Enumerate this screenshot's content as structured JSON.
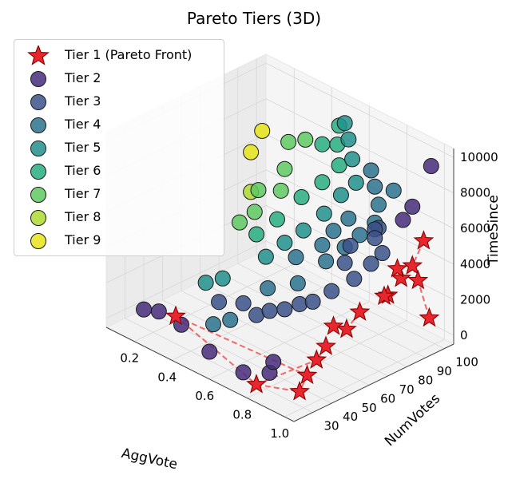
{
  "chart_data": {
    "type": "scatter",
    "title": "Pareto Tiers (3D)",
    "xlabel": "AggVote",
    "ylabel": "NumVotes",
    "zlabel": "TimeSince",
    "xlim": [
      0.05,
      1.05
    ],
    "ylim": [
      20,
      105
    ],
    "zlim": [
      -500,
      10500
    ],
    "xticks": [
      "0.2",
      "0.4",
      "0.6",
      "0.8",
      "1.0"
    ],
    "yticks": [
      "30",
      "40",
      "50",
      "60",
      "70",
      "80",
      "90",
      "100"
    ],
    "zticks": [
      "0",
      "2000",
      "4000",
      "6000",
      "8000",
      "10000"
    ],
    "legend_position": "top-left",
    "grid": true,
    "series": [
      {
        "name": "Tier 1 (Pareto Front)",
        "marker": "star",
        "color": "#e8262d",
        "points": [
          [
            0.22,
            40,
            0
          ],
          [
            0.8,
            25,
            0
          ],
          [
            0.98,
            30,
            300
          ],
          [
            0.96,
            36,
            800
          ],
          [
            0.94,
            43,
            1200
          ],
          [
            0.92,
            50,
            1500
          ],
          [
            0.93,
            60,
            2000
          ],
          [
            0.9,
            70,
            2300
          ],
          [
            0.95,
            80,
            3000
          ],
          [
            0.97,
            85,
            3800
          ],
          [
            0.98,
            90,
            4300
          ],
          [
            0.99,
            95,
            5500
          ],
          [
            0.97,
            100,
            800
          ],
          [
            0.93,
            98,
            2800
          ],
          [
            0.88,
            92,
            3500
          ],
          [
            0.85,
            88,
            2000
          ],
          [
            0.86,
            60,
            1800
          ]
        ],
        "connect": "dashed"
      },
      {
        "name": "Tier 2",
        "color": "#472d7b",
        "points": [
          [
            0.1,
            35,
            0
          ],
          [
            0.15,
            38,
            0
          ],
          [
            0.3,
            35,
            200
          ],
          [
            0.5,
            30,
            0
          ],
          [
            0.7,
            28,
            0
          ],
          [
            0.8,
            32,
            300
          ],
          [
            0.78,
            36,
            600
          ],
          [
            0.99,
            99,
            9500
          ],
          [
            0.92,
            96,
            7000
          ],
          [
            0.9,
            93,
            6300
          ]
        ]
      },
      {
        "name": "Tier 3",
        "color": "#3b528b",
        "points": [
          [
            0.4,
            45,
            1500
          ],
          [
            0.5,
            48,
            1800
          ],
          [
            0.55,
            50,
            1300
          ],
          [
            0.6,
            52,
            1700
          ],
          [
            0.65,
            55,
            1900
          ],
          [
            0.7,
            58,
            2300
          ],
          [
            0.75,
            60,
            2600
          ],
          [
            0.8,
            65,
            3200
          ],
          [
            0.85,
            72,
            3800
          ],
          [
            0.88,
            78,
            4500
          ],
          [
            0.9,
            82,
            5000
          ],
          [
            0.85,
            85,
            6000
          ],
          [
            0.8,
            88,
            5500
          ],
          [
            0.78,
            90,
            4800
          ],
          [
            0.7,
            85,
            4200
          ],
          [
            0.72,
            80,
            3600
          ]
        ]
      },
      {
        "name": "Tier 4",
        "color": "#2c728e",
        "points": [
          [
            0.4,
            42,
            400
          ],
          [
            0.45,
            46,
            700
          ],
          [
            0.55,
            56,
            2500
          ],
          [
            0.65,
            62,
            3000
          ],
          [
            0.72,
            70,
            4200
          ],
          [
            0.78,
            74,
            5100
          ],
          [
            0.82,
            78,
            5800
          ],
          [
            0.86,
            82,
            6500
          ],
          [
            0.84,
            86,
            7200
          ],
          [
            0.8,
            88,
            7900
          ],
          [
            0.76,
            90,
            8500
          ],
          [
            0.88,
            90,
            8000
          ],
          [
            0.74,
            80,
            6200
          ],
          [
            0.7,
            76,
            5500
          ],
          [
            0.68,
            72,
            4800
          ],
          [
            0.6,
            66,
            4000
          ]
        ]
      },
      {
        "name": "Tier 5",
        "color": "#21918c",
        "points": [
          [
            0.3,
            48,
            1900
          ],
          [
            0.35,
            52,
            2200
          ],
          [
            0.5,
            60,
            3800
          ],
          [
            0.55,
            65,
            4600
          ],
          [
            0.6,
            70,
            5300
          ],
          [
            0.65,
            76,
            6200
          ],
          [
            0.68,
            82,
            7100
          ],
          [
            0.72,
            86,
            7800
          ],
          [
            0.66,
            90,
            8600
          ],
          [
            0.62,
            92,
            9400
          ],
          [
            0.58,
            94,
            10000
          ]
        ]
      },
      {
        "name": "Tier 6",
        "color": "#28ae80",
        "points": [
          [
            0.45,
            60,
            4800
          ],
          [
            0.5,
            66,
            5600
          ],
          [
            0.55,
            74,
            6700
          ],
          [
            0.6,
            80,
            7500
          ],
          [
            0.63,
            86,
            8300
          ],
          [
            0.58,
            90,
            9000
          ],
          [
            0.55,
            94,
            9700
          ],
          [
            0.52,
            88,
            8800
          ]
        ]
      },
      {
        "name": "Tier 7",
        "color": "#5ec962",
        "points": [
          [
            0.38,
            58,
            5200
          ],
          [
            0.42,
            62,
            5800
          ],
          [
            0.48,
            70,
            6900
          ],
          [
            0.44,
            76,
            7600
          ],
          [
            0.4,
            82,
            8600
          ],
          [
            0.47,
            84,
            9000
          ],
          [
            0.36,
            70,
            6300
          ]
        ]
      },
      {
        "name": "Tier 8",
        "color": "#addc30",
        "points": [
          [
            0.36,
            66,
            6400
          ]
        ]
      },
      {
        "name": "Tier 9",
        "color": "#e5e419",
        "points": [
          [
            0.3,
            78,
            8900
          ],
          [
            0.28,
            74,
            7800
          ]
        ]
      }
    ]
  }
}
